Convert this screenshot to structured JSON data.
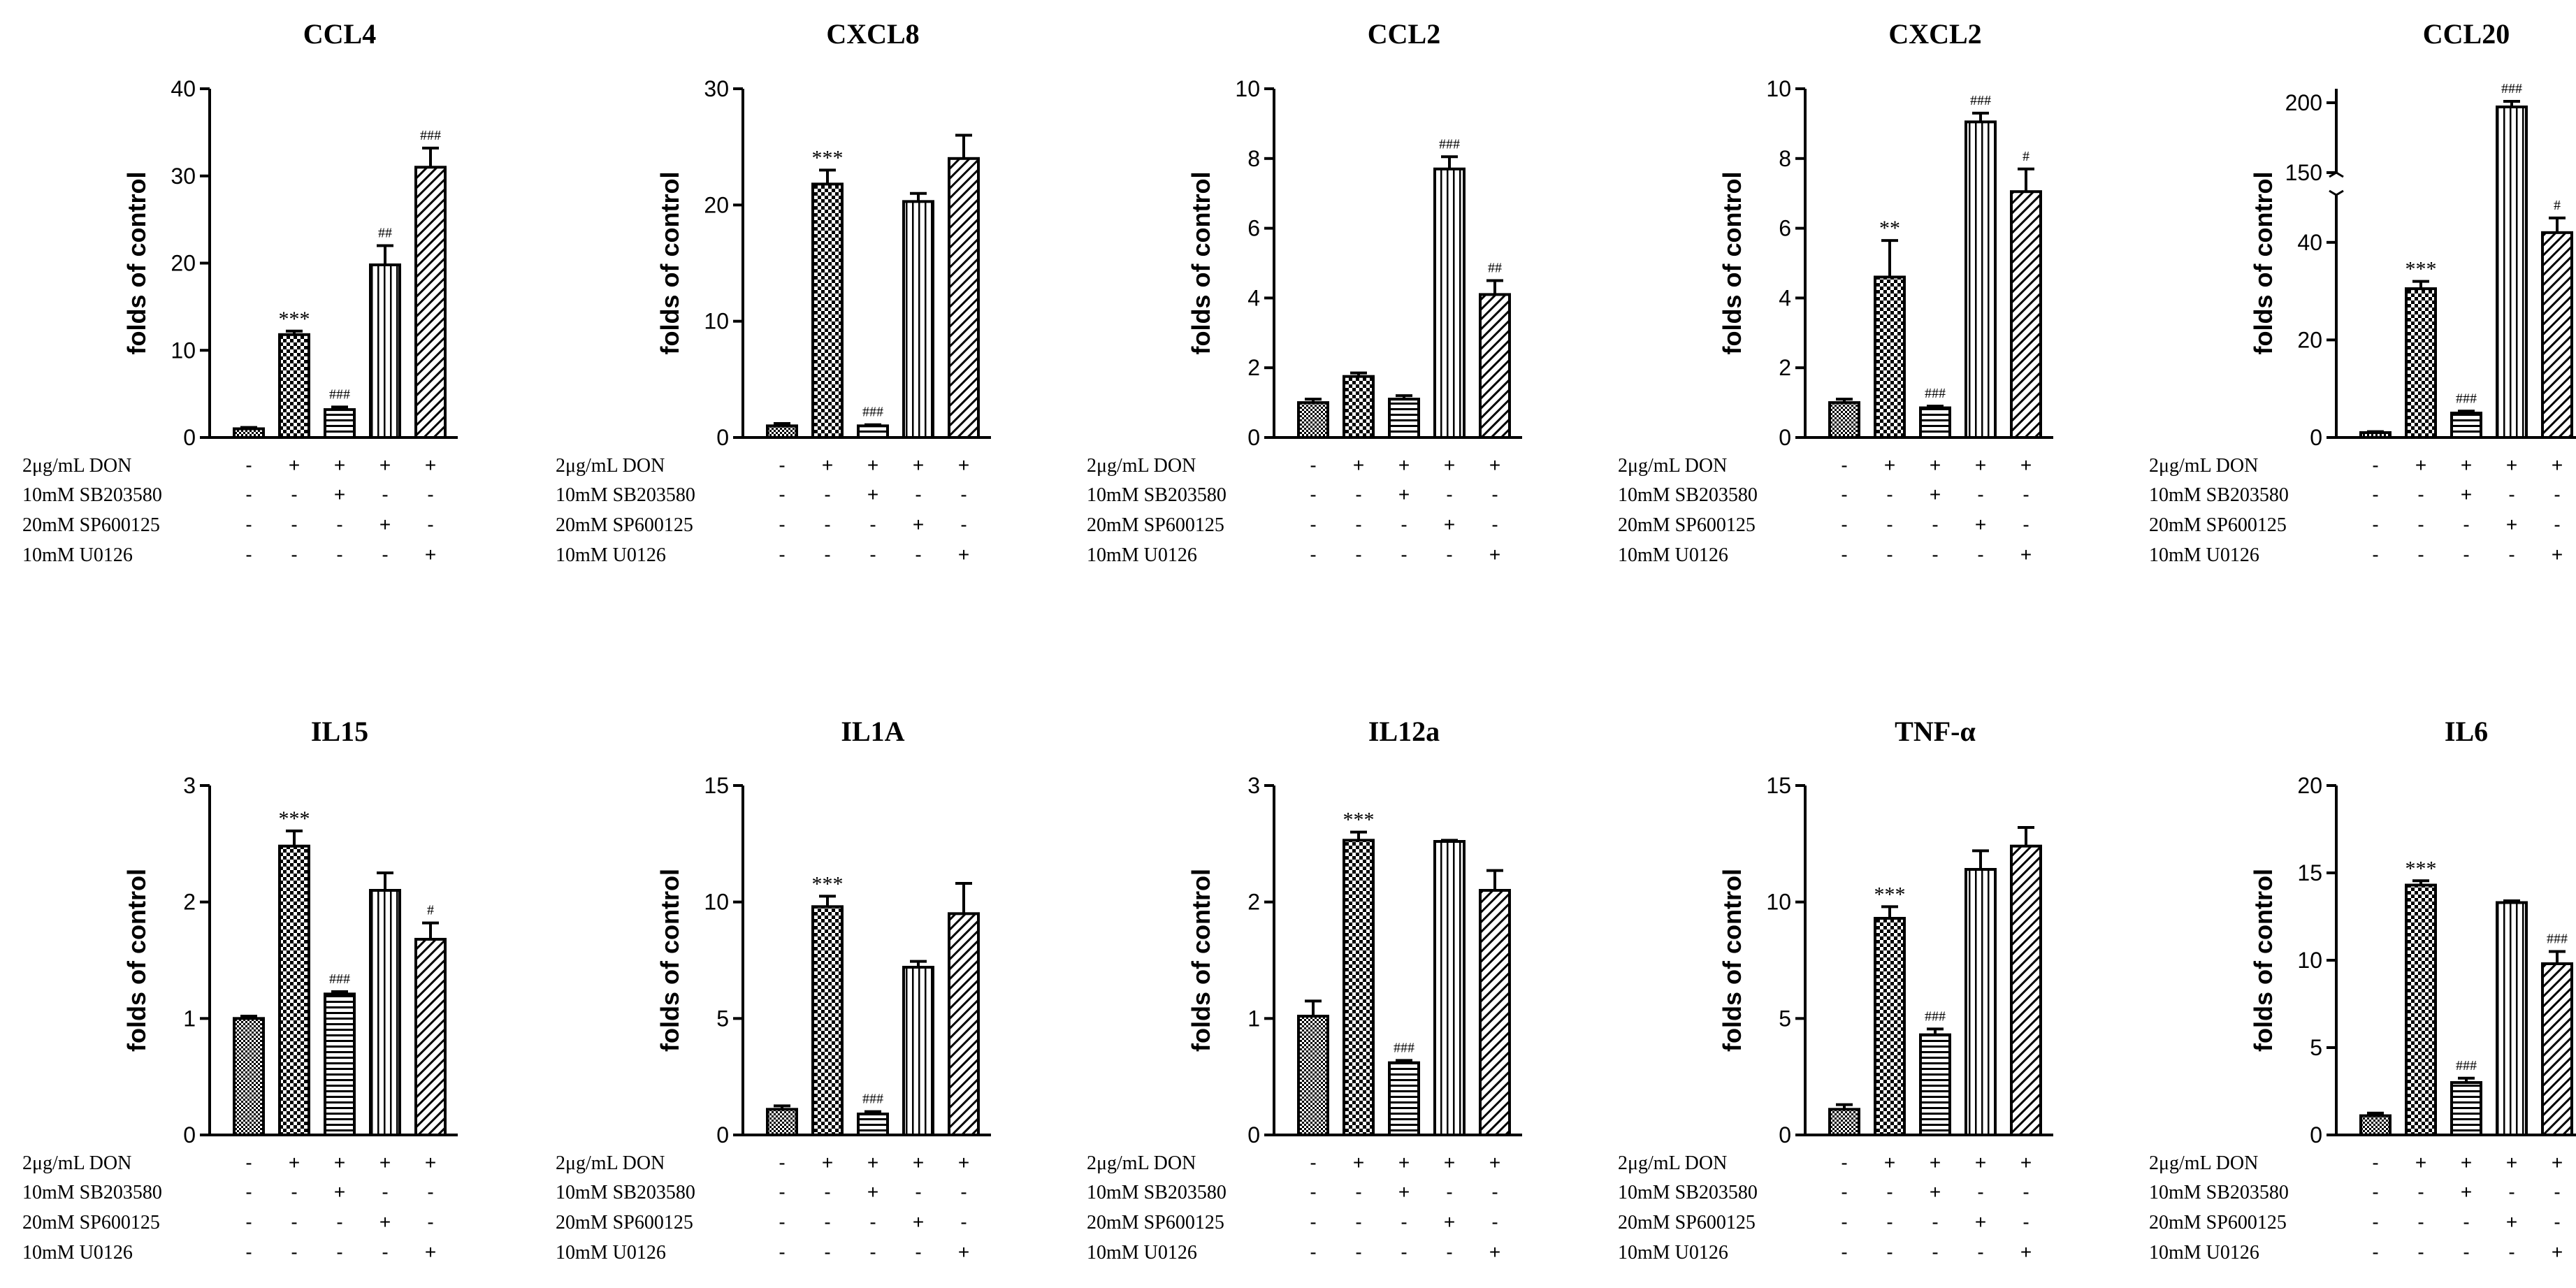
{
  "figure": {
    "conditions": [
      "2μg/mL DON",
      "10mM SB203580",
      "20mM SP600125",
      "10mM U0126"
    ],
    "design": [
      [
        "-",
        "+",
        "+",
        "+",
        "+"
      ],
      [
        "-",
        "-",
        "+",
        "-",
        "-"
      ],
      [
        "-",
        "-",
        "-",
        "+",
        "-"
      ],
      [
        "-",
        "-",
        "-",
        "-",
        "+"
      ]
    ]
  },
  "chart_data": [
    {
      "type": "bar",
      "title": "CCL4",
      "ylabel": "folds of control",
      "ylim": [
        0,
        40
      ],
      "yticks": [
        "0",
        "10",
        "20",
        "30",
        "40"
      ],
      "categories": [
        "control",
        "DON",
        "DON+SB203580",
        "DON+SP600125",
        "DON+U0126"
      ],
      "values": [
        1,
        11.8,
        3.2,
        19.8,
        31
      ],
      "errors": [
        0.15,
        0.4,
        0.3,
        2.2,
        2.2
      ],
      "annotations": [
        "",
        "***",
        "###",
        "##",
        "###"
      ]
    },
    {
      "type": "bar",
      "title": "CXCL8",
      "ylabel": "folds of control",
      "ylim": [
        0,
        30
      ],
      "yticks": [
        "0",
        "10",
        "20",
        "30"
      ],
      "categories": [
        "control",
        "DON",
        "DON+SB203580",
        "DON+SP600125",
        "DON+U0126"
      ],
      "values": [
        1,
        21.8,
        1,
        20.3,
        24
      ],
      "errors": [
        0.2,
        1.2,
        0.1,
        0.7,
        2
      ],
      "annotations": [
        "",
        "***",
        "###",
        "",
        ""
      ]
    },
    {
      "type": "bar",
      "title": "CCL2",
      "ylabel": "folds of control",
      "ylim": [
        0,
        10
      ],
      "yticks": [
        "0",
        "2",
        "4",
        "6",
        "8",
        "10"
      ],
      "categories": [
        "control",
        "DON",
        "DON+SB203580",
        "DON+SP600125",
        "DON+U0126"
      ],
      "values": [
        1,
        1.75,
        1.1,
        7.7,
        4.1
      ],
      "errors": [
        0.1,
        0.1,
        0.1,
        0.35,
        0.4
      ],
      "annotations": [
        "",
        "",
        "",
        "###",
        "##"
      ]
    },
    {
      "type": "bar",
      "title": "CXCL2",
      "ylabel": "folds of control",
      "ylim": [
        0,
        10
      ],
      "yticks": [
        "0",
        "2",
        "4",
        "6",
        "8",
        "10"
      ],
      "categories": [
        "control",
        "DON",
        "DON+SB203580",
        "DON+SP600125",
        "DON+U0126"
      ],
      "values": [
        1,
        4.6,
        0.85,
        9.05,
        7.05
      ],
      "errors": [
        0.1,
        1.05,
        0.05,
        0.25,
        0.65
      ],
      "annotations": [
        "",
        "**",
        "###",
        "###",
        "#"
      ]
    },
    {
      "type": "bar",
      "title": "CCL20",
      "ylabel": "folds of control",
      "ylim": [
        0,
        210
      ],
      "axis_break": [
        50,
        150
      ],
      "yticks": [
        "0",
        "20",
        "40",
        "150",
        "200"
      ],
      "categories": [
        "control",
        "DON",
        "DON+SB203580",
        "DON+SP600125",
        "DON+U0126"
      ],
      "values": [
        1,
        30.5,
        5,
        197,
        42
      ],
      "errors": [
        0.2,
        1.5,
        0.4,
        4,
        3
      ],
      "annotations": [
        "",
        "***",
        "###",
        "###",
        "#"
      ]
    },
    {
      "type": "bar",
      "title": "IL15",
      "ylabel": "folds of control",
      "ylim": [
        0,
        3
      ],
      "yticks": [
        "0",
        "1",
        "2",
        "3"
      ],
      "categories": [
        "control",
        "DON",
        "DON+SB203580",
        "DON+SP600125",
        "DON+U0126"
      ],
      "values": [
        1,
        2.48,
        1.21,
        2.1,
        1.68
      ],
      "errors": [
        0.02,
        0.13,
        0.02,
        0.15,
        0.14
      ],
      "annotations": [
        "",
        "***",
        "###",
        "",
        "#"
      ]
    },
    {
      "type": "bar",
      "title": "IL1A",
      "ylabel": "folds of control",
      "ylim": [
        0,
        15
      ],
      "yticks": [
        "0",
        "5",
        "10",
        "15"
      ],
      "categories": [
        "control",
        "DON",
        "DON+SB203580",
        "DON+SP600125",
        "DON+U0126"
      ],
      "values": [
        1.1,
        9.8,
        0.9,
        7.2,
        9.5
      ],
      "errors": [
        0.15,
        0.45,
        0.1,
        0.25,
        1.3
      ],
      "annotations": [
        "",
        "***",
        "###",
        "",
        ""
      ]
    },
    {
      "type": "bar",
      "title": "IL12a",
      "ylabel": "folds of control",
      "ylim": [
        0,
        3
      ],
      "yticks": [
        "0",
        "1",
        "2",
        "3"
      ],
      "categories": [
        "control",
        "DON",
        "DON+SB203580",
        "DON+SP600125",
        "DON+U0126"
      ],
      "values": [
        1.02,
        2.53,
        0.62,
        2.52,
        2.1
      ],
      "errors": [
        0.13,
        0.07,
        0.02,
        0.01,
        0.17
      ],
      "annotations": [
        "",
        "***",
        "###",
        "",
        ""
      ]
    },
    {
      "type": "bar",
      "title": "TNF-α",
      "ylabel": "folds of control",
      "ylim": [
        0,
        15
      ],
      "yticks": [
        "0",
        "5",
        "10",
        "15"
      ],
      "categories": [
        "control",
        "DON",
        "DON+SB203580",
        "DON+SP600125",
        "DON+U0126"
      ],
      "values": [
        1.1,
        9.3,
        4.3,
        11.4,
        12.4
      ],
      "errors": [
        0.2,
        0.5,
        0.25,
        0.8,
        0.8
      ],
      "annotations": [
        "",
        "***",
        "###",
        "",
        ""
      ]
    },
    {
      "type": "bar",
      "title": "IL6",
      "ylabel": "folds of control",
      "ylim": [
        0,
        20
      ],
      "yticks": [
        "0",
        "5",
        "10",
        "15",
        "20"
      ],
      "categories": [
        "control",
        "DON",
        "DON+SB203580",
        "DON+SP600125",
        "DON+U0126"
      ],
      "values": [
        1.1,
        14.3,
        3,
        13.3,
        9.8
      ],
      "errors": [
        0.15,
        0.25,
        0.25,
        0.1,
        0.7
      ],
      "annotations": [
        "",
        "***",
        "###",
        "",
        "###"
      ]
    }
  ]
}
